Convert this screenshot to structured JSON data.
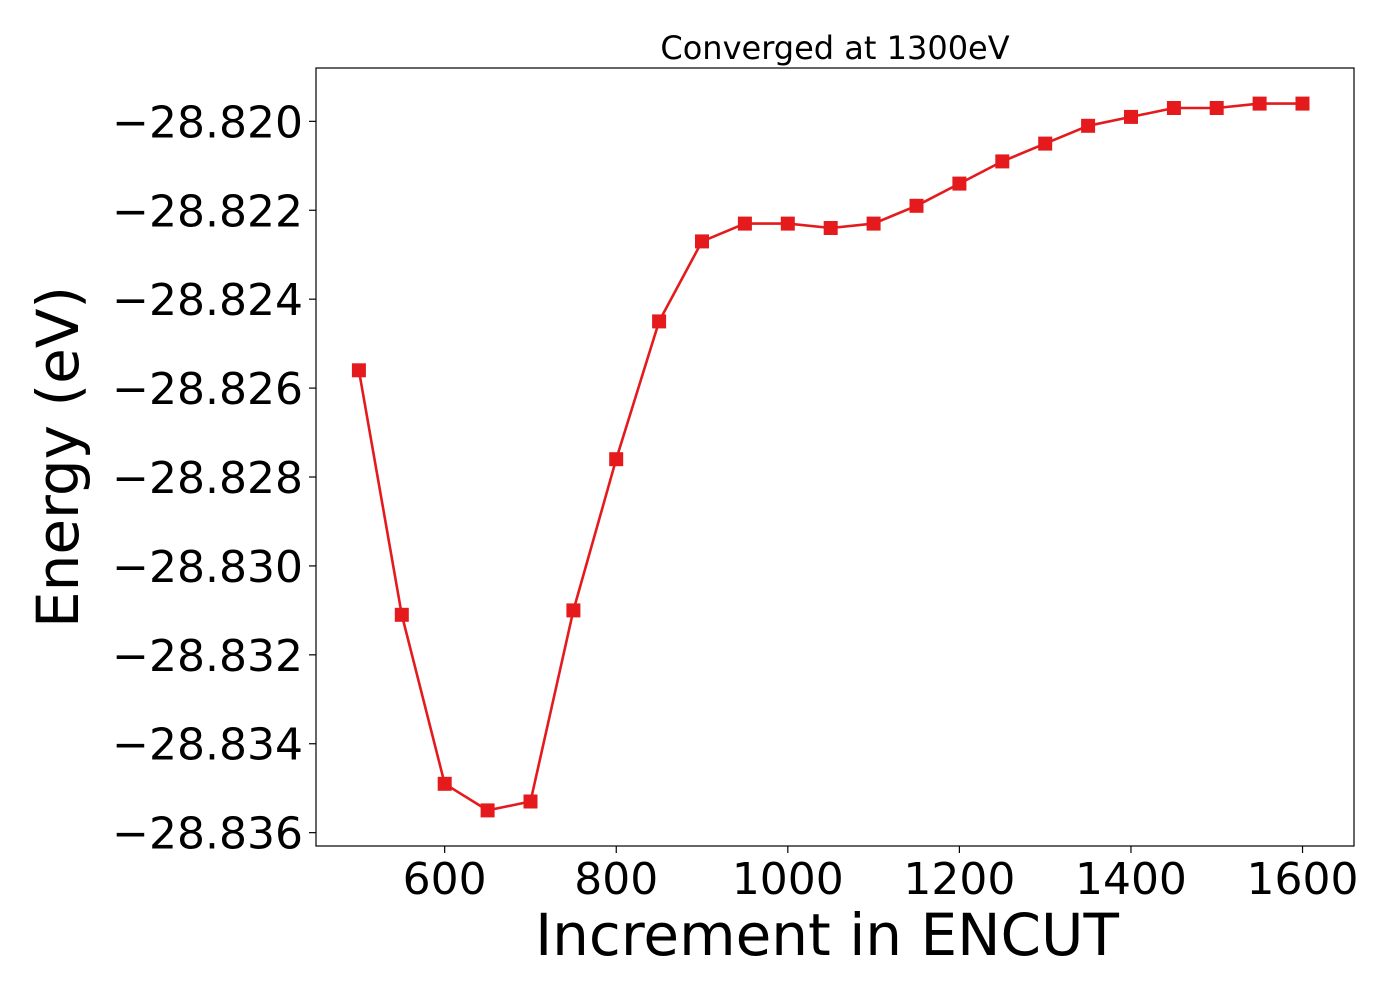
{
  "chart_data": {
    "type": "line",
    "title": "Converged at 1300eV",
    "xlabel": "Increment in ENCUT",
    "ylabel": "Energy (eV)",
    "xlim": [
      450,
      1660
    ],
    "ylim": [
      -28.8363,
      -28.8188
    ],
    "xticks": [
      600,
      800,
      1000,
      1200,
      1400,
      1600
    ],
    "xtick_labels": [
      "600",
      "800",
      "1000",
      "1200",
      "1400",
      "1600"
    ],
    "yticks": [
      -28.82,
      -28.822,
      -28.824,
      -28.826,
      -28.828,
      -28.83,
      -28.832,
      -28.834,
      -28.836
    ],
    "ytick_labels": [
      "−28.820",
      "−28.822",
      "−28.824",
      "−28.826",
      "−28.828",
      "−28.830",
      "−28.832",
      "−28.834",
      "−28.836"
    ],
    "grid": false,
    "legend": "none",
    "marker": "square",
    "color": "#e41a1c",
    "x": [
      500,
      550,
      600,
      650,
      700,
      750,
      800,
      850,
      900,
      950,
      1000,
      1050,
      1100,
      1150,
      1200,
      1250,
      1300,
      1350,
      1400,
      1450,
      1500,
      1550,
      1600
    ],
    "y": [
      -28.8256,
      -28.8311,
      -28.8349,
      -28.8355,
      -28.8353,
      -28.831,
      -28.8276,
      -28.8245,
      -28.8227,
      -28.8223,
      -28.8223,
      -28.8224,
      -28.8223,
      -28.8219,
      -28.8214,
      -28.8209,
      -28.8205,
      -28.8201,
      -28.8199,
      -28.8197,
      -28.8197,
      -28.8196,
      -28.8196
    ]
  }
}
